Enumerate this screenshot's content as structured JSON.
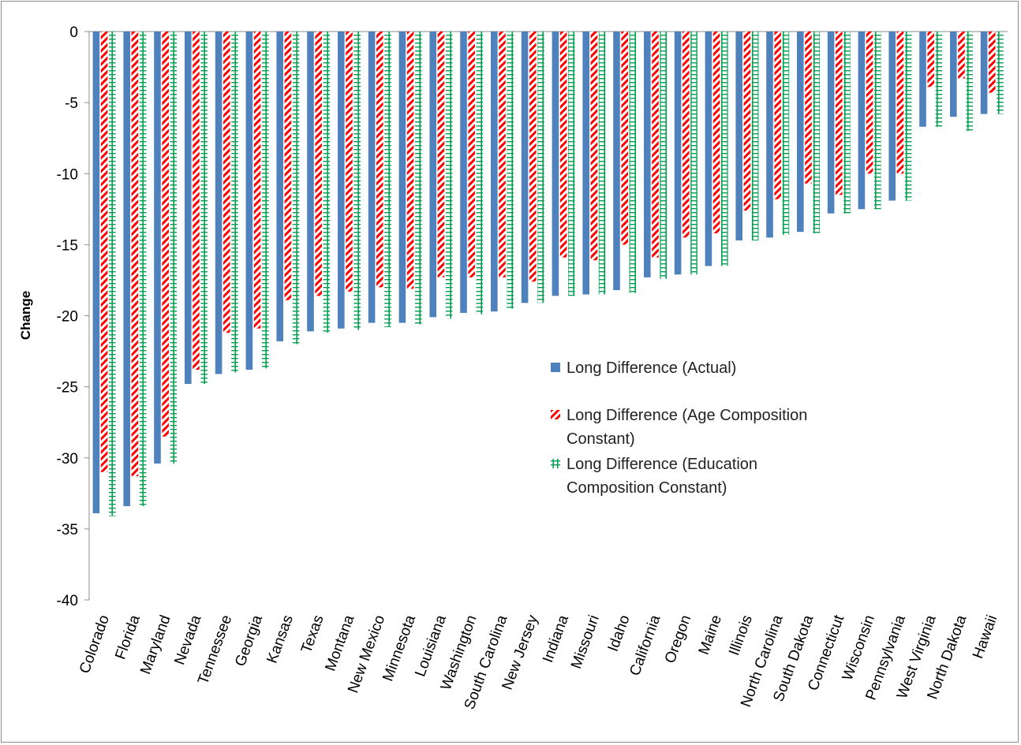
{
  "chart_data": {
    "type": "bar",
    "title": "",
    "xlabel": "",
    "ylabel": "Change",
    "ylim": [
      -40,
      0
    ],
    "yticks": [
      0,
      -5,
      -10,
      -15,
      -20,
      -25,
      -30,
      -35,
      -40
    ],
    "grid": false,
    "legend_position": "center-right",
    "categories": [
      "Colorado",
      "Florida",
      "Maryland",
      "Nevada",
      "Tennessee",
      "Georgia",
      "Kansas",
      "Texas",
      "Montana",
      "New Mexico",
      "Minnesota",
      "Louisiana",
      "Washington",
      "South Carolina",
      "New Jersey",
      "Indiana",
      "Missouri",
      "Idaho",
      "California",
      "Oregon",
      "Maine",
      "Illinois",
      "North Carolina",
      "South Dakota",
      "Connecticut",
      "Wisconsin",
      "Pennsylvania",
      "West Virginia",
      "North Dakota",
      "Hawaii"
    ],
    "series": [
      {
        "name": "Long Difference (Actual)",
        "color": "#4f81bd",
        "pattern": "solid",
        "values": [
          -33.9,
          -33.4,
          -30.4,
          -24.8,
          -24.1,
          -23.8,
          -21.8,
          -21.1,
          -20.9,
          -20.5,
          -20.5,
          -20.1,
          -19.8,
          -19.7,
          -19.1,
          -18.6,
          -18.5,
          -18.2,
          -17.3,
          -17.1,
          -16.5,
          -14.7,
          -14.5,
          -14.1,
          -12.8,
          -12.5,
          -11.9,
          -6.7,
          -6.0,
          -5.8
        ]
      },
      {
        "name": "Long Difference (Age Composition Constant)",
        "color": "#ff0000",
        "pattern": "diagonal-stripes",
        "values": [
          -31.0,
          -31.3,
          -28.5,
          -23.8,
          -21.2,
          -20.9,
          -18.9,
          -18.6,
          -18.3,
          -18.0,
          -18.1,
          -17.3,
          -17.3,
          -17.3,
          -17.6,
          -15.9,
          -16.1,
          -15.0,
          -15.9,
          -14.5,
          -14.2,
          -12.6,
          -11.8,
          -10.7,
          -11.5,
          -10.0,
          -10.0,
          -3.9,
          -3.3,
          -4.3
        ]
      },
      {
        "name": "Long Difference (Education Composition Constant)",
        "color": "#00a050",
        "pattern": "ladder",
        "values": [
          -34.1,
          -33.4,
          -30.4,
          -24.8,
          -24.0,
          -23.7,
          -22.0,
          -21.2,
          -21.0,
          -20.8,
          -20.6,
          -20.2,
          -19.9,
          -19.5,
          -19.1,
          -18.6,
          -18.5,
          -18.4,
          -17.4,
          -17.1,
          -16.5,
          -14.7,
          -14.3,
          -14.2,
          -12.8,
          -12.5,
          -11.9,
          -6.7,
          -7.0,
          -5.8
        ]
      }
    ]
  }
}
